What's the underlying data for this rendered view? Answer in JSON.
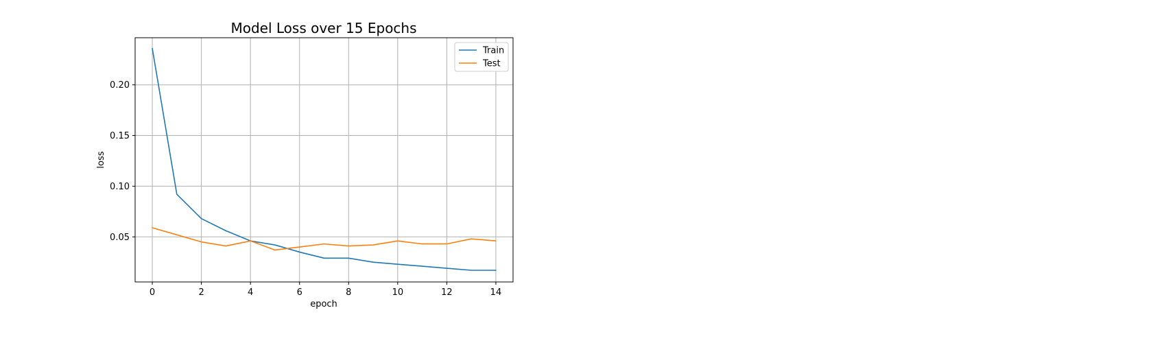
{
  "chart_data": {
    "type": "line",
    "title": "Model Loss over 15 Epochs",
    "xlabel": "epoch",
    "ylabel": "loss",
    "x": [
      0,
      1,
      2,
      3,
      4,
      5,
      6,
      7,
      8,
      9,
      10,
      11,
      12,
      13,
      14
    ],
    "series": [
      {
        "name": "Train",
        "color": "#1f77b4",
        "values": [
          0.236,
          0.092,
          0.068,
          0.056,
          0.046,
          0.042,
          0.035,
          0.029,
          0.029,
          0.025,
          0.023,
          0.021,
          0.019,
          0.017,
          0.017
        ]
      },
      {
        "name": "Test",
        "color": "#ff7f0e",
        "values": [
          0.059,
          0.052,
          0.045,
          0.041,
          0.046,
          0.037,
          0.04,
          0.043,
          0.041,
          0.042,
          0.046,
          0.043,
          0.043,
          0.048,
          0.046
        ]
      }
    ],
    "xlim": [
      -0.7,
      14.7
    ],
    "ylim": [
      0.0055,
      0.2465
    ],
    "xticks": [
      "0",
      "2",
      "4",
      "6",
      "8",
      "10",
      "12",
      "14"
    ],
    "yticks": [
      "0.05",
      "0.10",
      "0.15",
      "0.20"
    ],
    "grid": true,
    "legend_position": "top-right"
  }
}
